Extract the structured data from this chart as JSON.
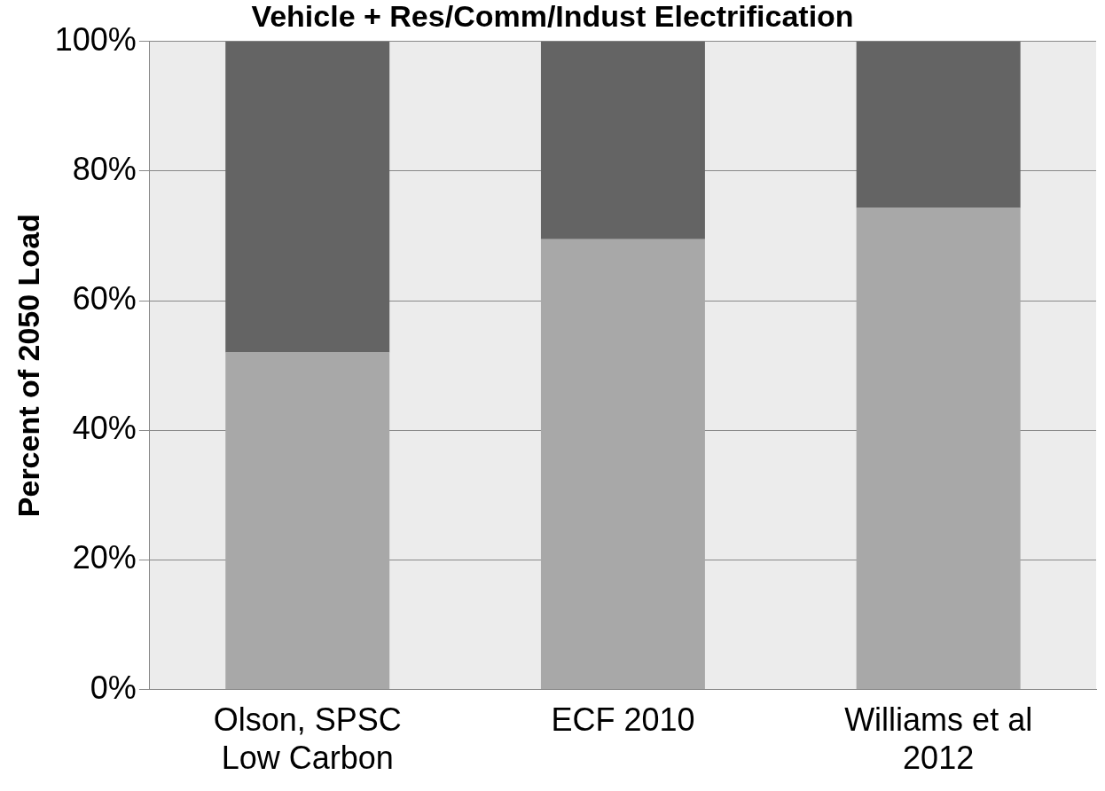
{
  "chart_data": {
    "type": "bar",
    "title": "Vehicle + Res/Comm/Indust Electrification",
    "ylabel": "Percent of 2050 Load",
    "categories": [
      "Olson, SPSC\nLow Carbon",
      "ECF 2010",
      "Williams et al\n2012"
    ],
    "stacked": true,
    "series": [
      {
        "color": "#a8a8a8",
        "values": [
          52,
          69.5,
          74.3
        ]
      },
      {
        "color": "#646464",
        "values": [
          48,
          30.5,
          25.7
        ]
      }
    ],
    "ylim": [
      0,
      100
    ],
    "yticks": [
      {
        "value": 0,
        "label": "0%"
      },
      {
        "value": 20,
        "label": "20%"
      },
      {
        "value": 40,
        "label": "40%"
      },
      {
        "value": 60,
        "label": "60%"
      },
      {
        "value": 80,
        "label": "80%"
      },
      {
        "value": 100,
        "label": "100%"
      }
    ],
    "grid": "y",
    "legend": false
  }
}
